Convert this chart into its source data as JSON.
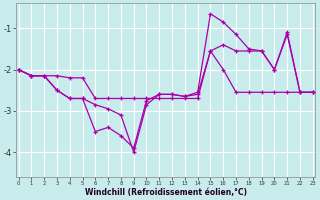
{
  "xlabel": "Windchill (Refroidissement éolien,°C)",
  "bg_color": "#c8ecec",
  "line_color": "#aa00aa",
  "grid_color": "#ffffff",
  "x_ticks": [
    0,
    1,
    2,
    3,
    4,
    5,
    6,
    7,
    8,
    9,
    10,
    11,
    12,
    13,
    14,
    15,
    16,
    17,
    18,
    19,
    20,
    21,
    22,
    23
  ],
  "y_ticks": [
    -4,
    -3,
    -2,
    -1
  ],
  "xlim": [
    -0.2,
    23.2
  ],
  "ylim": [
    -4.6,
    -0.4
  ],
  "line1_x": [
    0,
    1,
    2,
    3,
    4,
    5,
    6,
    7,
    8,
    9,
    10,
    11,
    12,
    13,
    14,
    15,
    16,
    17,
    18,
    19,
    20,
    21,
    22,
    23
  ],
  "line1_y": [
    -2.0,
    -2.15,
    -2.15,
    -2.15,
    -2.2,
    -2.2,
    -2.7,
    -2.7,
    -2.7,
    -2.7,
    -2.7,
    -2.7,
    -2.7,
    -2.7,
    -2.7,
    -1.55,
    -1.4,
    -1.55,
    -1.55,
    -1.55,
    -2.0,
    -1.15,
    -2.55,
    -2.55
  ],
  "line2_x": [
    0,
    1,
    2,
    3,
    4,
    5,
    6,
    7,
    8,
    9,
    10,
    11,
    12,
    13,
    14,
    15,
    16,
    17,
    18,
    19,
    20,
    21,
    22,
    23
  ],
  "line2_y": [
    -2.0,
    -2.15,
    -2.15,
    -2.5,
    -2.7,
    -2.7,
    -3.5,
    -3.4,
    -3.6,
    -3.9,
    -2.75,
    -2.6,
    -2.6,
    -2.65,
    -2.55,
    -0.65,
    -0.85,
    -1.15,
    -1.5,
    -1.55,
    -2.0,
    -1.1,
    -2.55,
    -2.55
  ],
  "line3_x": [
    0,
    1,
    2,
    3,
    4,
    5,
    6,
    7,
    8,
    9,
    10,
    11,
    12,
    13,
    14,
    15,
    16,
    17,
    18,
    19,
    20,
    21,
    22,
    23
  ],
  "line3_y": [
    -2.0,
    -2.15,
    -2.15,
    -2.5,
    -2.7,
    -2.7,
    -2.85,
    -2.95,
    -3.1,
    -4.0,
    -2.85,
    -2.6,
    -2.6,
    -2.65,
    -2.6,
    -1.55,
    -2.0,
    -2.55,
    -2.55,
    -2.55,
    -2.55,
    -2.55,
    -2.55,
    -2.55
  ]
}
